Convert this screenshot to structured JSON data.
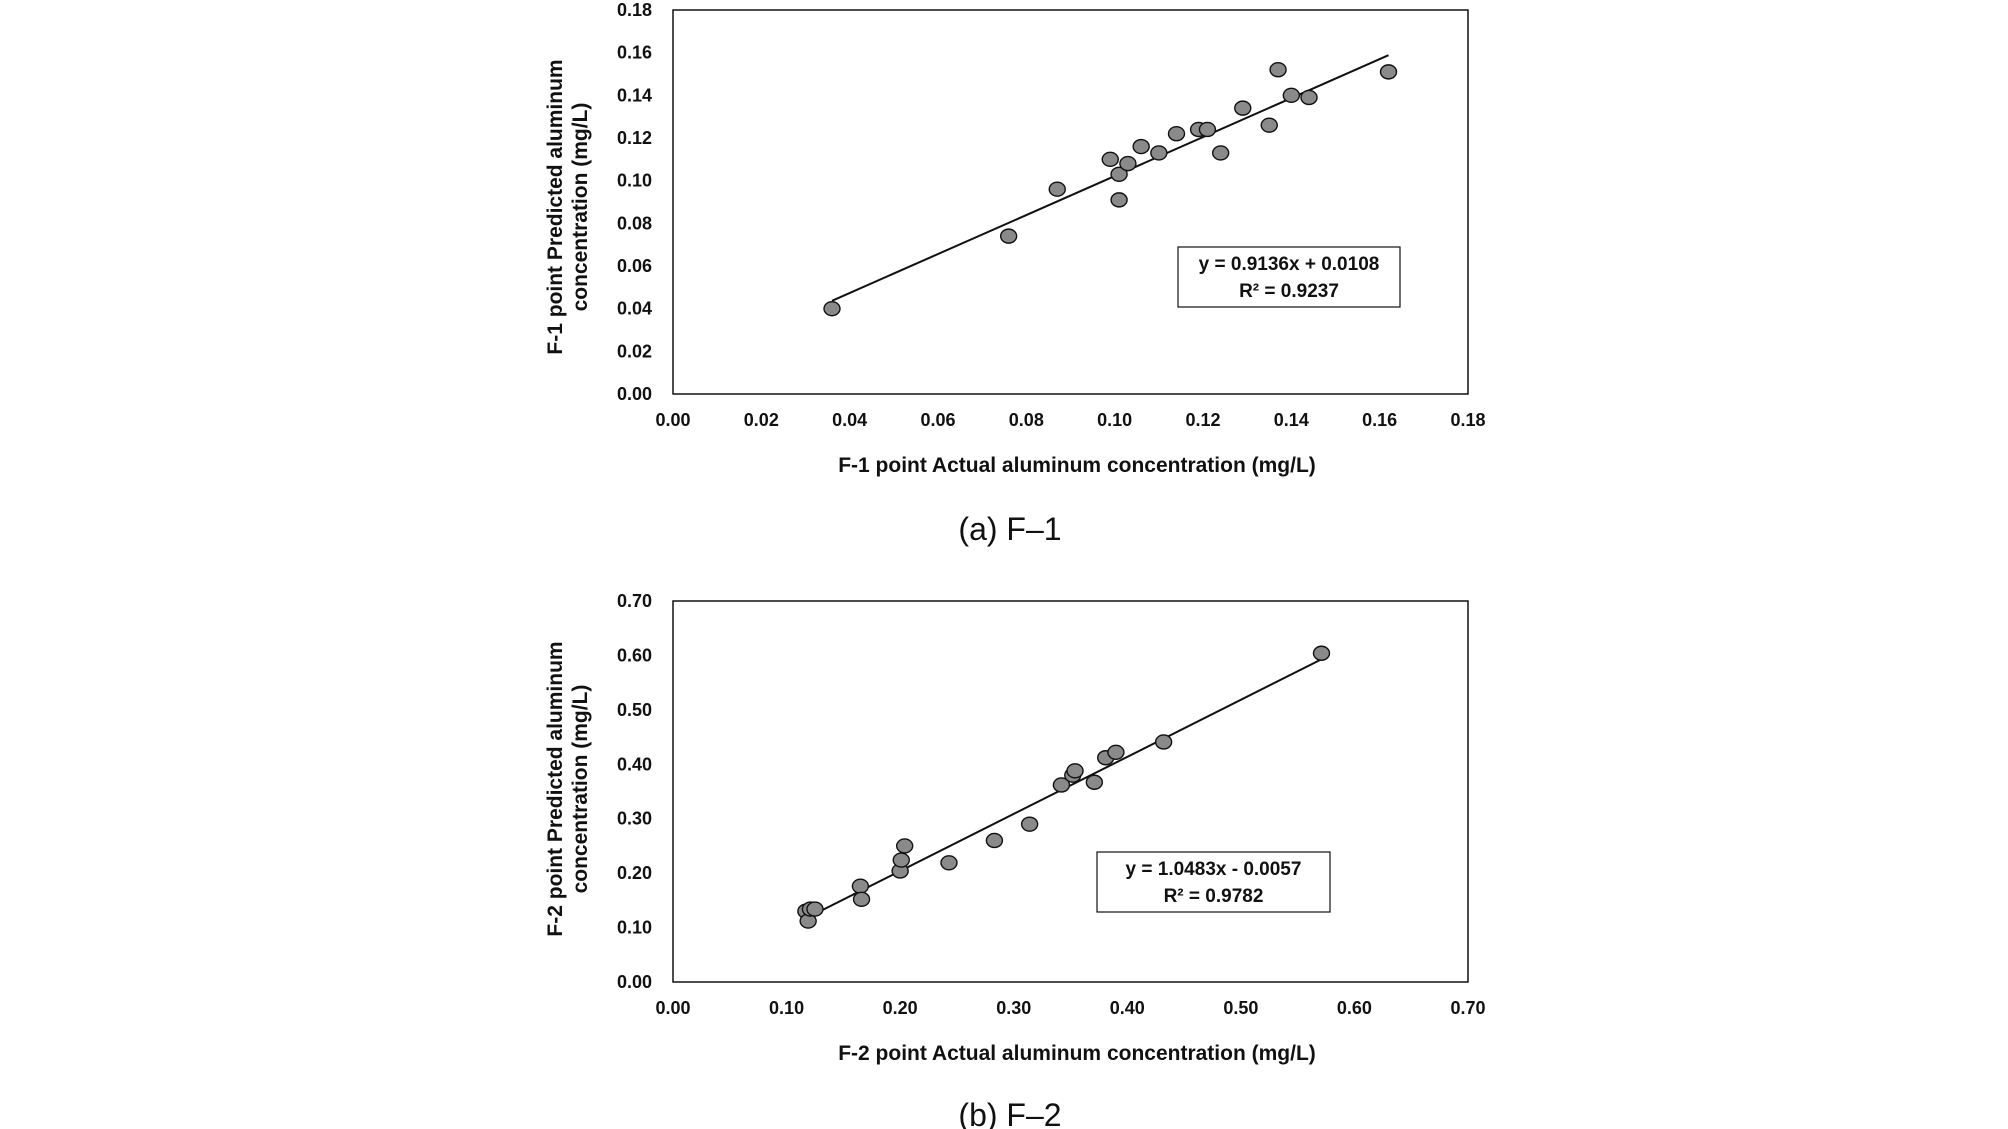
{
  "chart_data": [
    {
      "type": "scatter",
      "caption": "(a) F–1",
      "xlabel": "F-1 point Actual aluminum concentration (mg/L)",
      "ylabel": [
        "F-1 point Predicted aluminum",
        "concentration (mg/L)"
      ],
      "xlim": [
        0,
        0.18
      ],
      "ylim": [
        0,
        0.18
      ],
      "xticks": [
        "0.00",
        "0.02",
        "0.04",
        "0.06",
        "0.08",
        "0.10",
        "0.12",
        "0.14",
        "0.16",
        "0.18"
      ],
      "yticks": [
        "0.00",
        "0.02",
        "0.04",
        "0.06",
        "0.08",
        "0.10",
        "0.12",
        "0.14",
        "0.16",
        "0.18"
      ],
      "equation": "y = 0.9136x + 0.0108",
      "r_squared": "R² = 0.9237",
      "trendline": {
        "slope": 0.9136,
        "intercept": 0.0108,
        "x_range": [
          0.036,
          0.162
        ]
      },
      "points": [
        [
          0.036,
          0.04
        ],
        [
          0.076,
          0.074
        ],
        [
          0.087,
          0.096
        ],
        [
          0.099,
          0.11
        ],
        [
          0.101,
          0.103
        ],
        [
          0.101,
          0.091
        ],
        [
          0.103,
          0.108
        ],
        [
          0.106,
          0.116
        ],
        [
          0.11,
          0.113
        ],
        [
          0.114,
          0.122
        ],
        [
          0.119,
          0.124
        ],
        [
          0.121,
          0.124
        ],
        [
          0.124,
          0.113
        ],
        [
          0.129,
          0.134
        ],
        [
          0.135,
          0.126
        ],
        [
          0.137,
          0.152
        ],
        [
          0.14,
          0.14
        ],
        [
          0.144,
          0.139
        ],
        [
          0.162,
          0.151
        ]
      ]
    },
    {
      "type": "scatter",
      "caption": "(b) F–2",
      "xlabel": "F-2 point Actual aluminum concentration (mg/L)",
      "ylabel": [
        "F-2 point Predicted aluminum",
        "concentration (mg/L)"
      ],
      "xlim": [
        0,
        0.7
      ],
      "ylim": [
        0,
        0.7
      ],
      "xticks": [
        "0.00",
        "0.10",
        "0.20",
        "0.30",
        "0.40",
        "0.50",
        "0.60",
        "0.70"
      ],
      "yticks": [
        "0.00",
        "0.10",
        "0.20",
        "0.30",
        "0.40",
        "0.50",
        "0.60",
        "0.70"
      ],
      "equation": "y = 1.0483x - 0.0057",
      "r_squared": "R² = 0.9782",
      "trendline": {
        "slope": 1.0483,
        "intercept": -0.0057,
        "x_range": [
          0.115,
          0.575
        ]
      },
      "points": [
        [
          0.117,
          0.13
        ],
        [
          0.119,
          0.112
        ],
        [
          0.121,
          0.134
        ],
        [
          0.125,
          0.134
        ],
        [
          0.165,
          0.176
        ],
        [
          0.166,
          0.152
        ],
        [
          0.2,
          0.204
        ],
        [
          0.201,
          0.224
        ],
        [
          0.204,
          0.25
        ],
        [
          0.243,
          0.219
        ],
        [
          0.283,
          0.26
        ],
        [
          0.314,
          0.29
        ],
        [
          0.342,
          0.362
        ],
        [
          0.352,
          0.38
        ],
        [
          0.354,
          0.388
        ],
        [
          0.371,
          0.367
        ],
        [
          0.381,
          0.412
        ],
        [
          0.39,
          0.422
        ],
        [
          0.432,
          0.441
        ],
        [
          0.571,
          0.604
        ]
      ]
    }
  ]
}
